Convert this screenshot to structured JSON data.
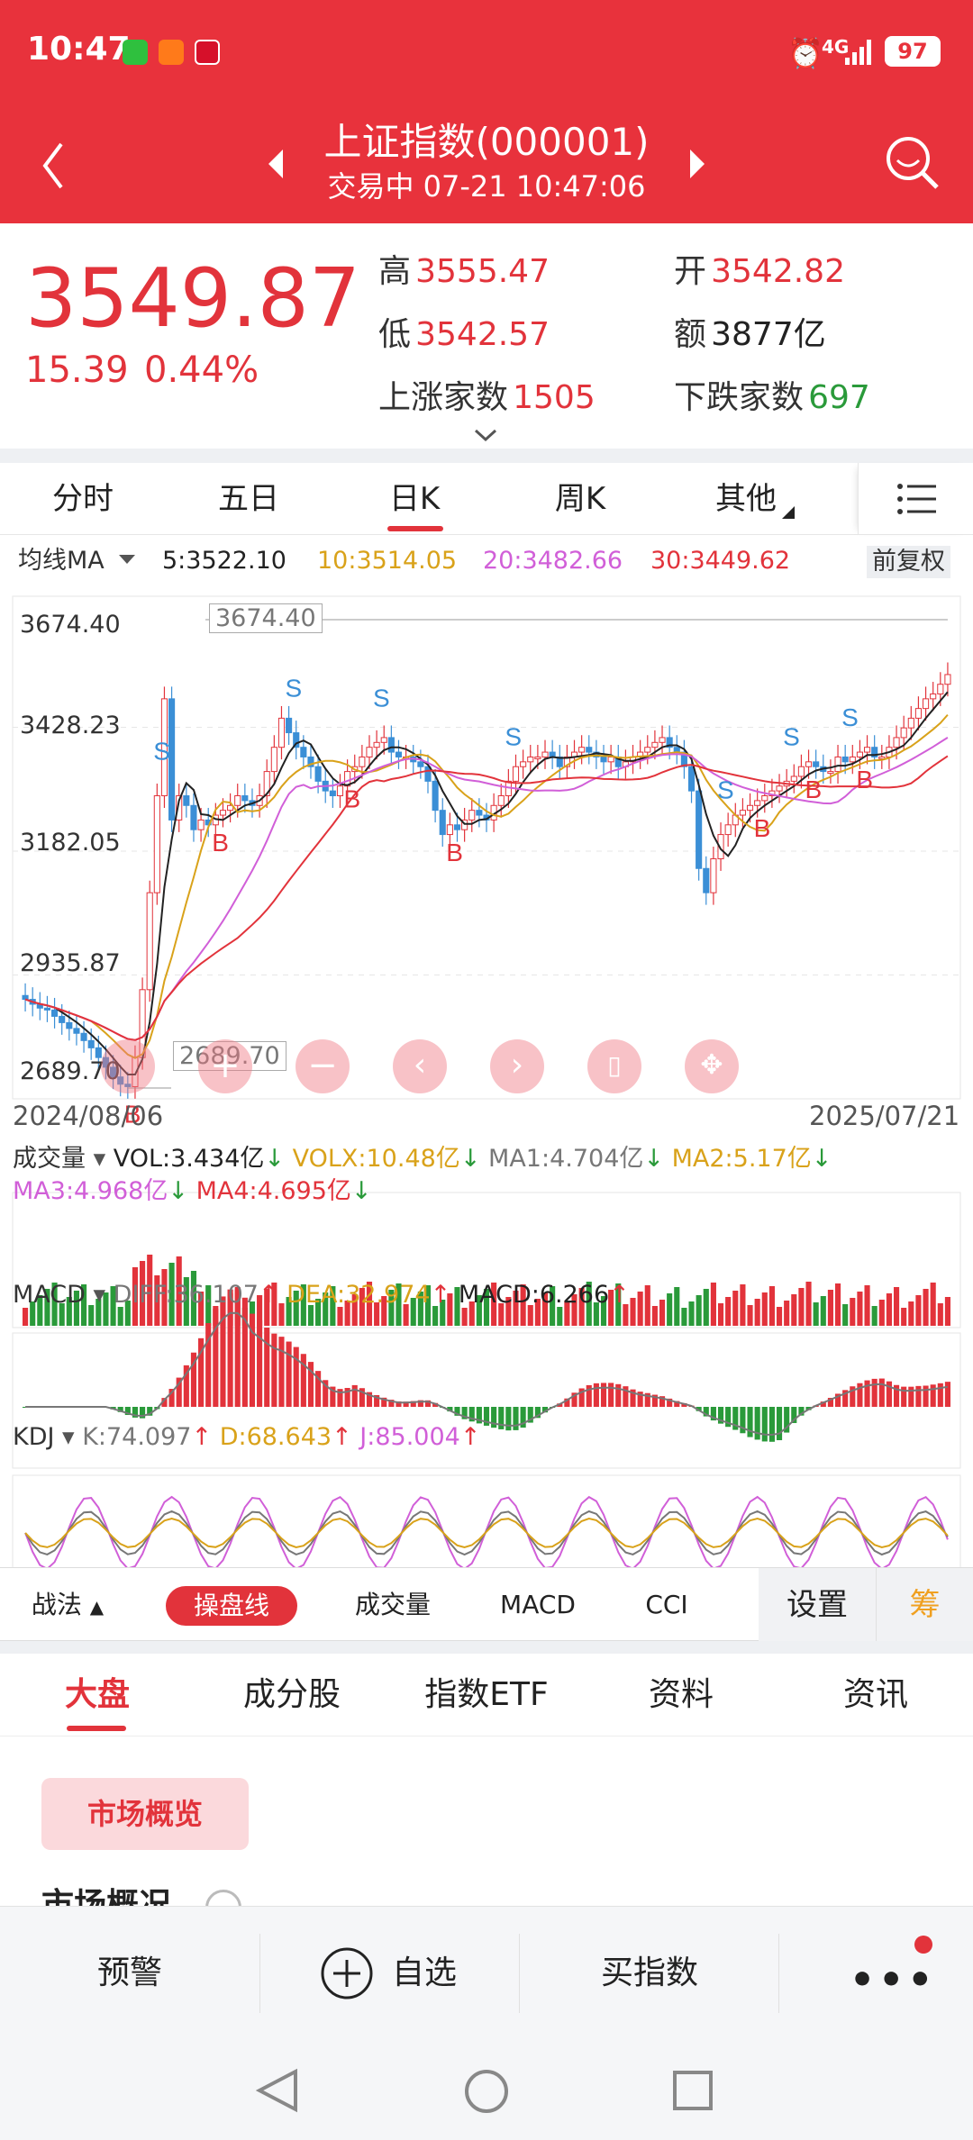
{
  "status_bar": {
    "time": "10:47",
    "network": "4G",
    "battery": "97"
  },
  "nav": {
    "title": "上证指数(000001)",
    "subtitle": "交易中   07-21 10:47:06"
  },
  "quote": {
    "price": "3549.87",
    "change": "15.39",
    "change_pct": "0.44%",
    "high_label": "高",
    "high": "3555.47",
    "open_label": "开",
    "open": "3542.82",
    "low_label": "低",
    "low": "3542.57",
    "amount_label": "额",
    "amount": "3877亿",
    "up_label": "上涨家数",
    "up_count": "1505",
    "down_label": "下跌家数",
    "down_count": "697"
  },
  "tabs": [
    "分时",
    "五日",
    "日K",
    "周K",
    "其他"
  ],
  "active_tab": "日K",
  "ma_bar": {
    "label": "均线MA",
    "ma5": "5:3522.10",
    "ma10": "10:3514.05",
    "ma20": "20:3482.66",
    "ma30": "30:3449.62",
    "adjust": "前复权"
  },
  "chart_data": {
    "type": "candlestick",
    "y_ticks": [
      "3674.40",
      "3428.23",
      "3182.05",
      "2935.87",
      "2689.70"
    ],
    "ylim": [
      2689.7,
      3674.4
    ],
    "x_start": "2024/08/06",
    "x_end": "2025/07/21",
    "max_label": "3674.40",
    "min_label": "2689.70",
    "close": [
      2880,
      2870,
      2862,
      2858,
      2845,
      2832,
      2820,
      2810,
      2795,
      2780,
      2760,
      2740,
      2720,
      2705,
      2700,
      2760,
      2900,
      3100,
      3300,
      3500,
      3250,
      3300,
      3280,
      3230,
      3250,
      3240,
      3260,
      3270,
      3280,
      3300,
      3290,
      3280,
      3300,
      3350,
      3400,
      3460,
      3430,
      3400,
      3380,
      3360,
      3330,
      3310,
      3300,
      3320,
      3350,
      3360,
      3380,
      3400,
      3410,
      3420,
      3390,
      3380,
      3380,
      3370,
      3360,
      3330,
      3270,
      3220,
      3240,
      3230,
      3250,
      3270,
      3260,
      3250,
      3280,
      3300,
      3330,
      3360,
      3370,
      3380,
      3380,
      3390,
      3380,
      3360,
      3380,
      3390,
      3400,
      3390,
      3380,
      3370,
      3380,
      3360,
      3370,
      3380,
      3390,
      3400,
      3410,
      3420,
      3400,
      3390,
      3360,
      3310,
      3150,
      3100,
      3170,
      3220,
      3240,
      3260,
      3270,
      3280,
      3290,
      3300,
      3310,
      3320,
      3330,
      3340,
      3360,
      3370,
      3360,
      3350,
      3350,
      3380,
      3370,
      3380,
      3390,
      3400,
      3380,
      3380,
      3400,
      3420,
      3440,
      3460,
      3480,
      3500,
      3510,
      3530,
      3550
    ],
    "vol_indicators": {
      "vol": "VOL:3.434亿",
      "volx": "VOLX:10.48亿",
      "ma1": "MA1:4.704亿",
      "ma2": "MA2:5.17亿",
      "ma3": "MA3:4.968亿",
      "ma4": "MA4:4.695亿"
    },
    "macd_indicators": {
      "diff": "DIFF:36.107",
      "dea": "DEA:32.974",
      "macd": "MACD:6.266"
    },
    "kdj_indicators": {
      "k": "K:74.097",
      "d": "D:68.643",
      "j": "J:85.004"
    }
  },
  "panel_labels": {
    "volume": "成交量",
    "macd": "MACD",
    "kdj": "KDJ"
  },
  "signals": {
    "buy": "B",
    "sell": "S"
  },
  "toolbar2": {
    "zhanfa": "战法",
    "active": "操盘线",
    "items": [
      "成交量",
      "MACD",
      "CCI"
    ],
    "settings": "设置",
    "chou": "筹"
  },
  "subtabs": [
    "大盘",
    "成分股",
    "指数ETF",
    "资料",
    "资讯"
  ],
  "content": {
    "chip": "市场概览",
    "section": "市场概况"
  },
  "bottom_bar": {
    "alert": "预警",
    "watch": "自选",
    "buy": "买指数"
  },
  "colors": {
    "brand_red": "#e8323c",
    "up": "#e2333b",
    "down": "#2a9a3a"
  }
}
